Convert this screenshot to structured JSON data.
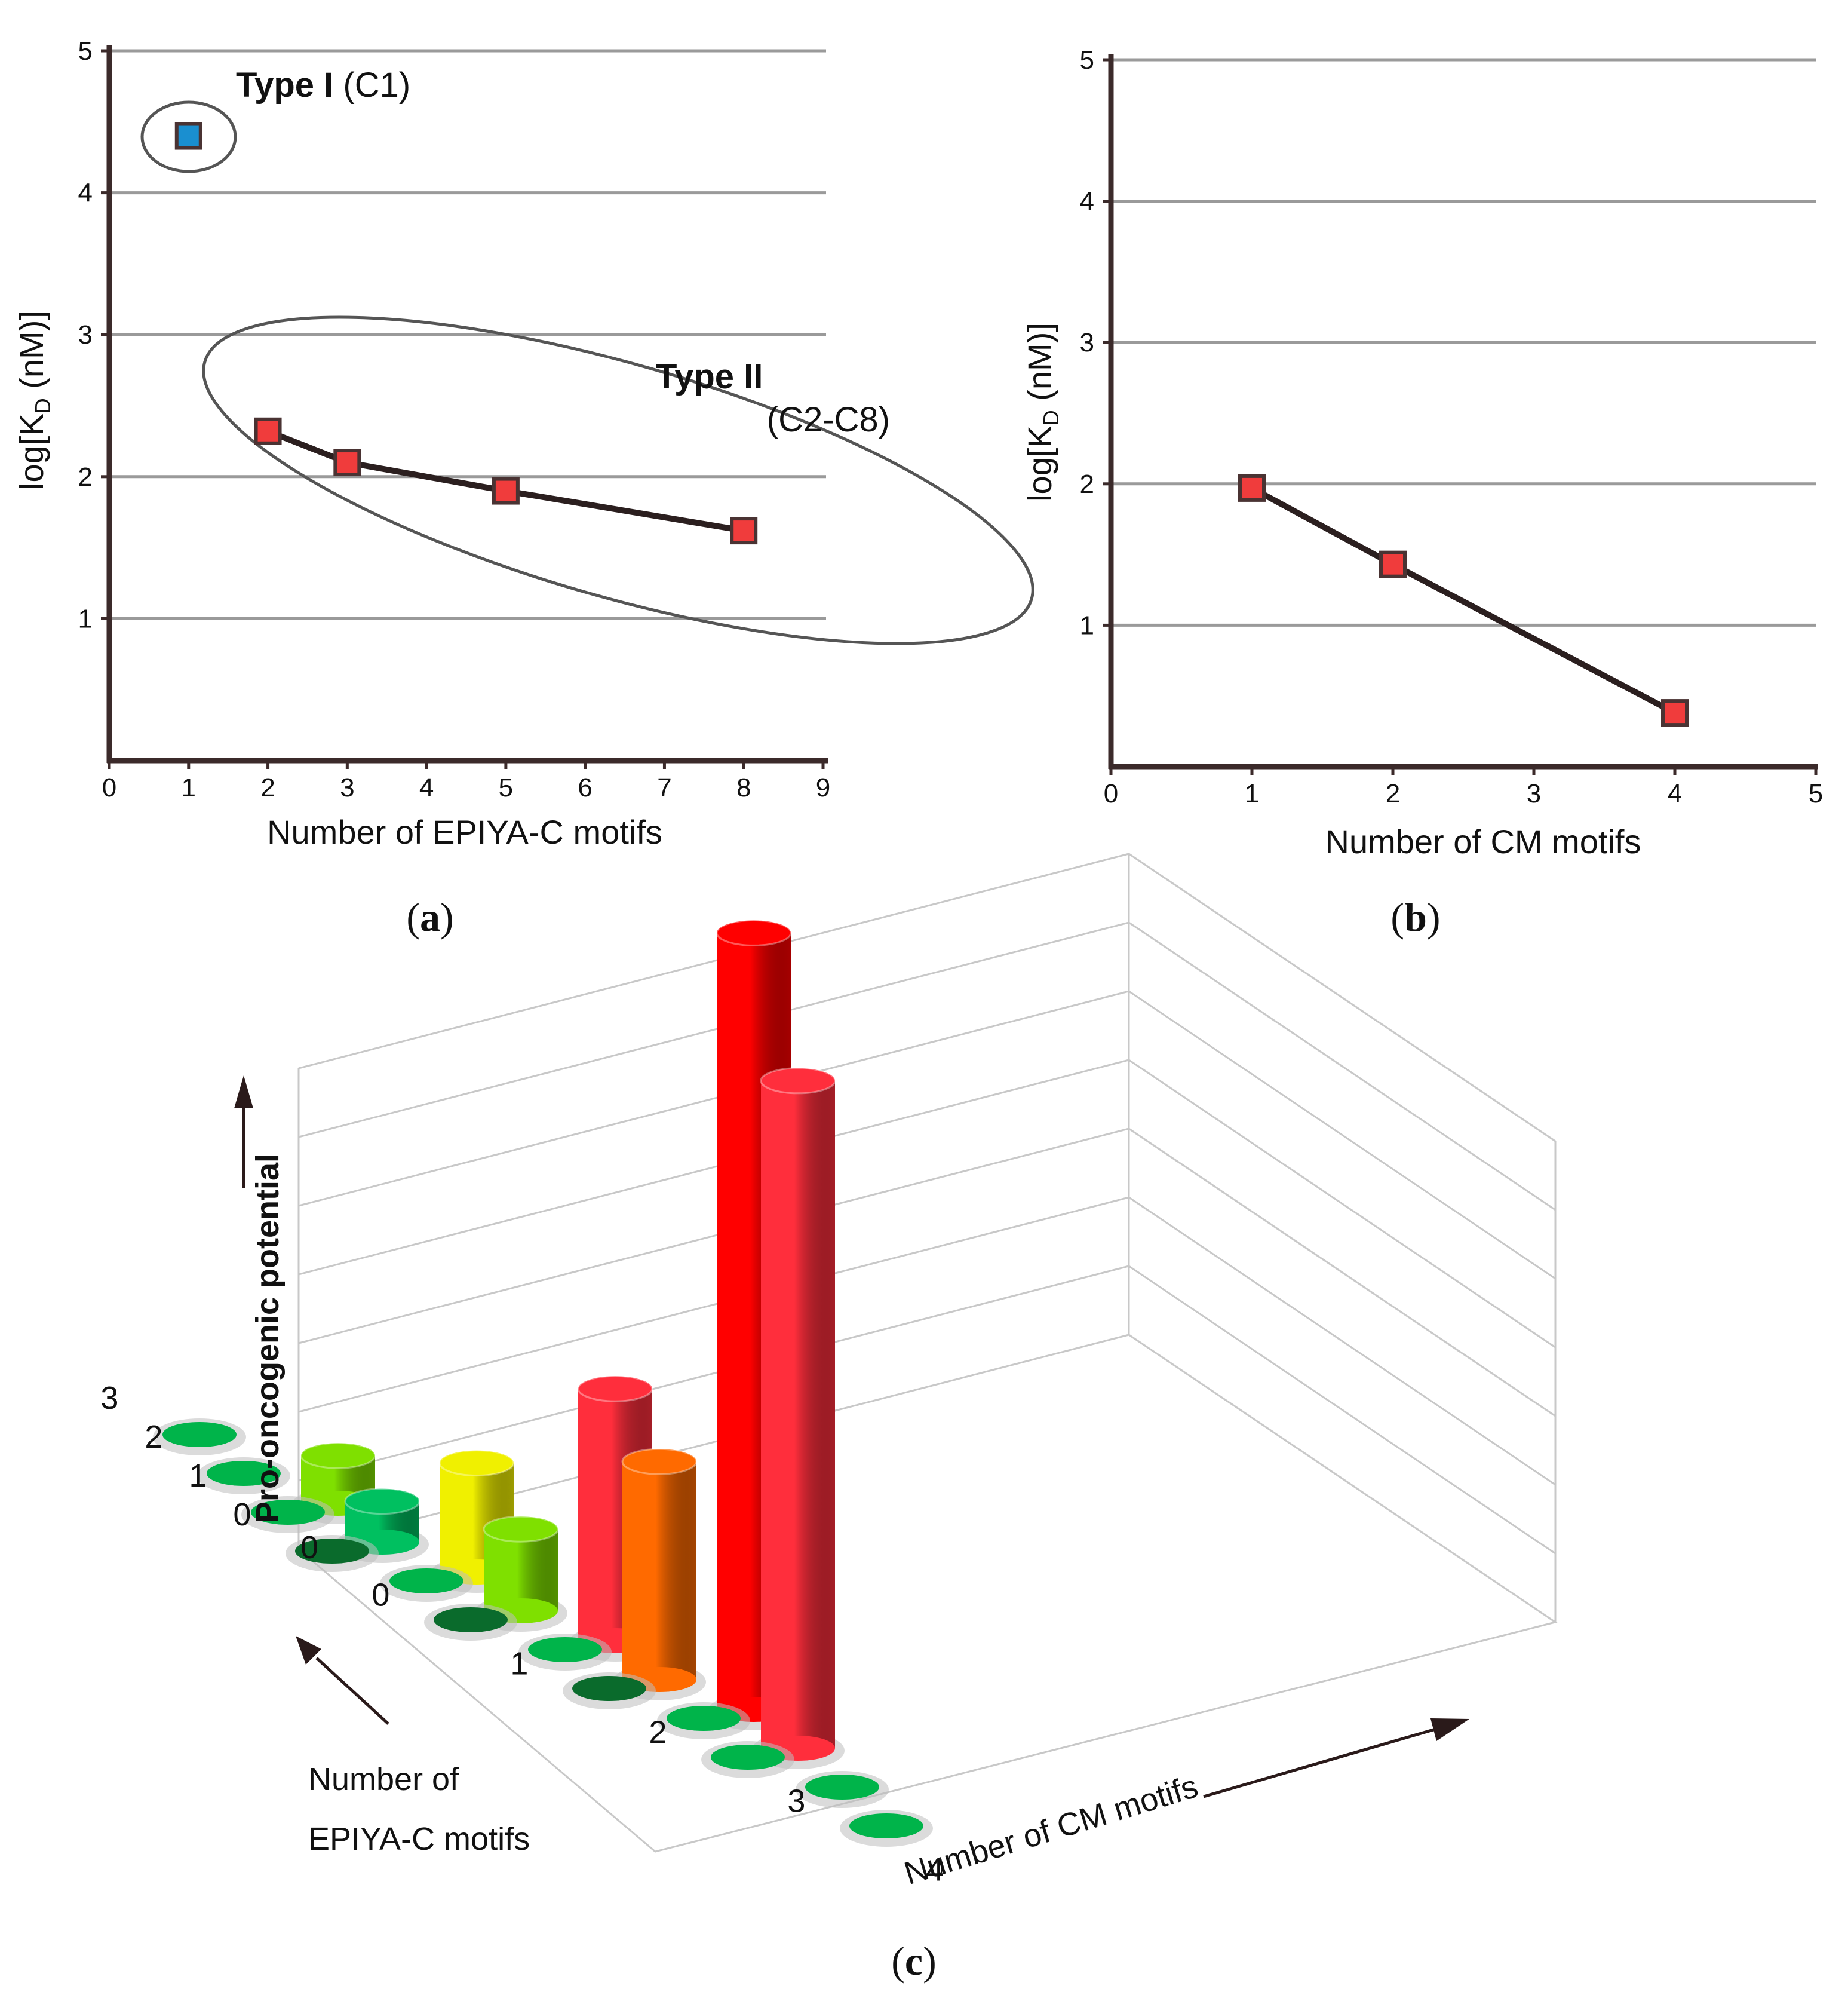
{
  "chart_data": [
    {
      "id": "a",
      "type": "scatter",
      "panel_label": "(a)",
      "xlabel": "Number of EPIYA-C motifs",
      "ylabel_main": "log[K",
      "ylabel_sub": "D",
      "ylabel_end": " (nM)]",
      "xlim": [
        0,
        9
      ],
      "ylim": [
        0,
        5
      ],
      "x_ticks": [
        0,
        1,
        2,
        3,
        4,
        5,
        6,
        7,
        8,
        9
      ],
      "y_ticks": [
        1,
        2,
        3,
        4,
        5
      ],
      "grid": true,
      "series": [
        {
          "name": "Type I (C1)",
          "color": "#1a8fd0",
          "line": false,
          "points": [
            {
              "x": 1,
              "y": 4.4
            }
          ]
        },
        {
          "name": "Type II (C2-C8)",
          "color": "#f03c3c",
          "line": true,
          "points": [
            {
              "x": 2,
              "y": 2.32
            },
            {
              "x": 3,
              "y": 2.1
            },
            {
              "x": 5,
              "y": 1.9
            },
            {
              "x": 8,
              "y": 1.62
            }
          ]
        }
      ],
      "annotations": {
        "type1_bold": "Type I",
        "type1_rest": " (C1)",
        "type2_bold": "Type II",
        "type2_rest": "(C2-C8)"
      }
    },
    {
      "id": "b",
      "type": "line",
      "panel_label": "(b)",
      "xlabel": "Number of CM motifs",
      "ylabel_main": "log[K",
      "ylabel_sub": "D",
      "ylabel_end": " (nM)]",
      "xlim": [
        0,
        5
      ],
      "ylim": [
        0,
        5
      ],
      "x_ticks": [
        0,
        1,
        2,
        3,
        4,
        5
      ],
      "y_ticks": [
        1,
        2,
        3,
        4,
        5
      ],
      "grid": true,
      "series": [
        {
          "name": "CM motifs",
          "color": "#f03c3c",
          "line": true,
          "points": [
            {
              "x": 1,
              "y": 1.97
            },
            {
              "x": 2,
              "y": 1.43
            },
            {
              "x": 4,
              "y": 0.38
            }
          ]
        }
      ]
    },
    {
      "id": "c",
      "type": "bar3d",
      "panel_label": "(c)",
      "xlabel": "Number of CM motifs",
      "ylabel_line1": "Number of",
      "ylabel_line2": "EPIYA-C motifs",
      "zlabel": "Pro-oncogenic potential",
      "z_tick": "0",
      "x_ticks": [
        0,
        1,
        2,
        3,
        4
      ],
      "y_ticks": [
        0,
        1,
        2,
        3
      ],
      "note": "heights are relative (no z scale printed)",
      "cells": [
        {
          "x": 0,
          "y": 0,
          "height": 0,
          "color": "#0a6b2c"
        },
        {
          "x": 1,
          "y": 0,
          "height": 0,
          "color": "#0a6b2c"
        },
        {
          "x": 2,
          "y": 0,
          "height": 0,
          "color": "#0a6b2c"
        },
        {
          "x": 3,
          "y": 0,
          "height": 0,
          "color": "#00b44a"
        },
        {
          "x": 4,
          "y": 0,
          "height": 0,
          "color": "#00b44a"
        },
        {
          "x": 0,
          "y": 1,
          "height": 0,
          "color": "#00b44a"
        },
        {
          "x": 1,
          "y": 1,
          "height": 0,
          "color": "#00b44a"
        },
        {
          "x": 2,
          "y": 1,
          "height": 0,
          "color": "#00b44a"
        },
        {
          "x": 3,
          "y": 1,
          "height": 0,
          "color": "#00b44a"
        },
        {
          "x": 4,
          "y": 1,
          "height": 0,
          "color": "#00b44a"
        },
        {
          "x": 0,
          "y": 2,
          "height": 0,
          "color": "#00b44a"
        },
        {
          "x": 1,
          "y": 2,
          "height": 0.3,
          "color": "#00c060"
        },
        {
          "x": 2,
          "y": 2,
          "height": 0.6,
          "color": "#7fe000"
        },
        {
          "x": 3,
          "y": 2,
          "height": 1.6,
          "color": "#ff6a00"
        },
        {
          "x": 4,
          "y": 2,
          "height": 4.9,
          "color": "#ff2e3c"
        },
        {
          "x": 0,
          "y": 3,
          "height": 0,
          "color": "#00b44a"
        },
        {
          "x": 1,
          "y": 3,
          "height": 0.35,
          "color": "#7fe000"
        },
        {
          "x": 2,
          "y": 3,
          "height": 0.8,
          "color": "#f0f000"
        },
        {
          "x": 3,
          "y": 3,
          "height": 1.85,
          "color": "#ff2e3c"
        },
        {
          "x": 4,
          "y": 3,
          "height": 5.7,
          "color": "#ff0000"
        }
      ]
    }
  ]
}
